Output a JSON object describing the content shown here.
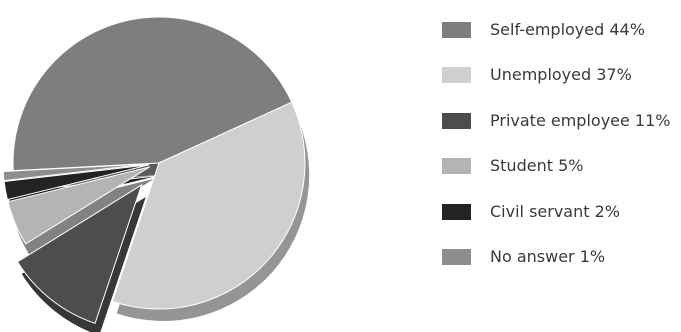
{
  "chart_data": {
    "type": "pie",
    "legend_position": "right",
    "slices": [
      {
        "label": "Self-employed 44%",
        "value": 44,
        "color": "#7e7e7e"
      },
      {
        "label": "Unemployed 37%",
        "value": 37,
        "color": "#cfcfcf"
      },
      {
        "label": "Private employee 11%",
        "value": 11,
        "color": "#4d4d4d"
      },
      {
        "label": "Student 5%",
        "value": 5,
        "color": "#b4b4b4"
      },
      {
        "label": "Civil servant 2%",
        "value": 2,
        "color": "#232323"
      },
      {
        "label": "No answer 1%",
        "value": 1,
        "color": "#8d8d8d"
      }
    ]
  }
}
